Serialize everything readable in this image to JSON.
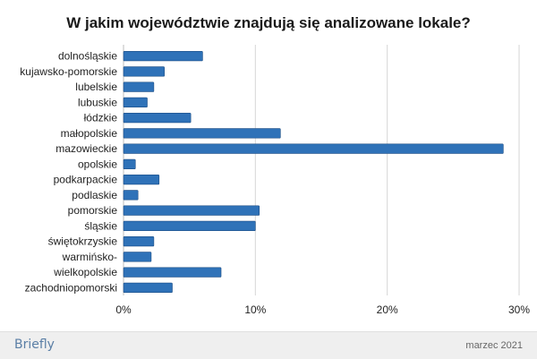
{
  "chart_data": {
    "type": "bar",
    "orientation": "horizontal",
    "title": "W jakim województwie znajdują się analizowane lokale?",
    "categories": [
      "dolnośląskie",
      "kujawsko-pomorskie",
      "lubelskie",
      "lubuskie",
      "łódzkie",
      "małopolskie",
      "mazowieckie",
      "opolskie",
      "podkarpackie",
      "podlaskie",
      "pomorskie",
      "śląskie",
      "świętokrzyskie",
      "warmińsko-",
      "wielkopolskie",
      "zachodniopomorski"
    ],
    "values": [
      6.0,
      3.1,
      2.3,
      1.8,
      5.1,
      11.9,
      28.8,
      0.9,
      2.7,
      1.1,
      10.3,
      10.0,
      2.3,
      2.1,
      7.4,
      3.7
    ],
    "value_unit": "%",
    "xlim": [
      0,
      30
    ],
    "x_ticks": [
      "0%",
      "10%",
      "20%",
      "30%"
    ],
    "grid": "vertical",
    "bar_color": "#2f72b8",
    "bar_border_color": "#1f4f86",
    "legend": "none"
  },
  "footer": {
    "brand": "Briefly",
    "date": "marzec 2021"
  }
}
